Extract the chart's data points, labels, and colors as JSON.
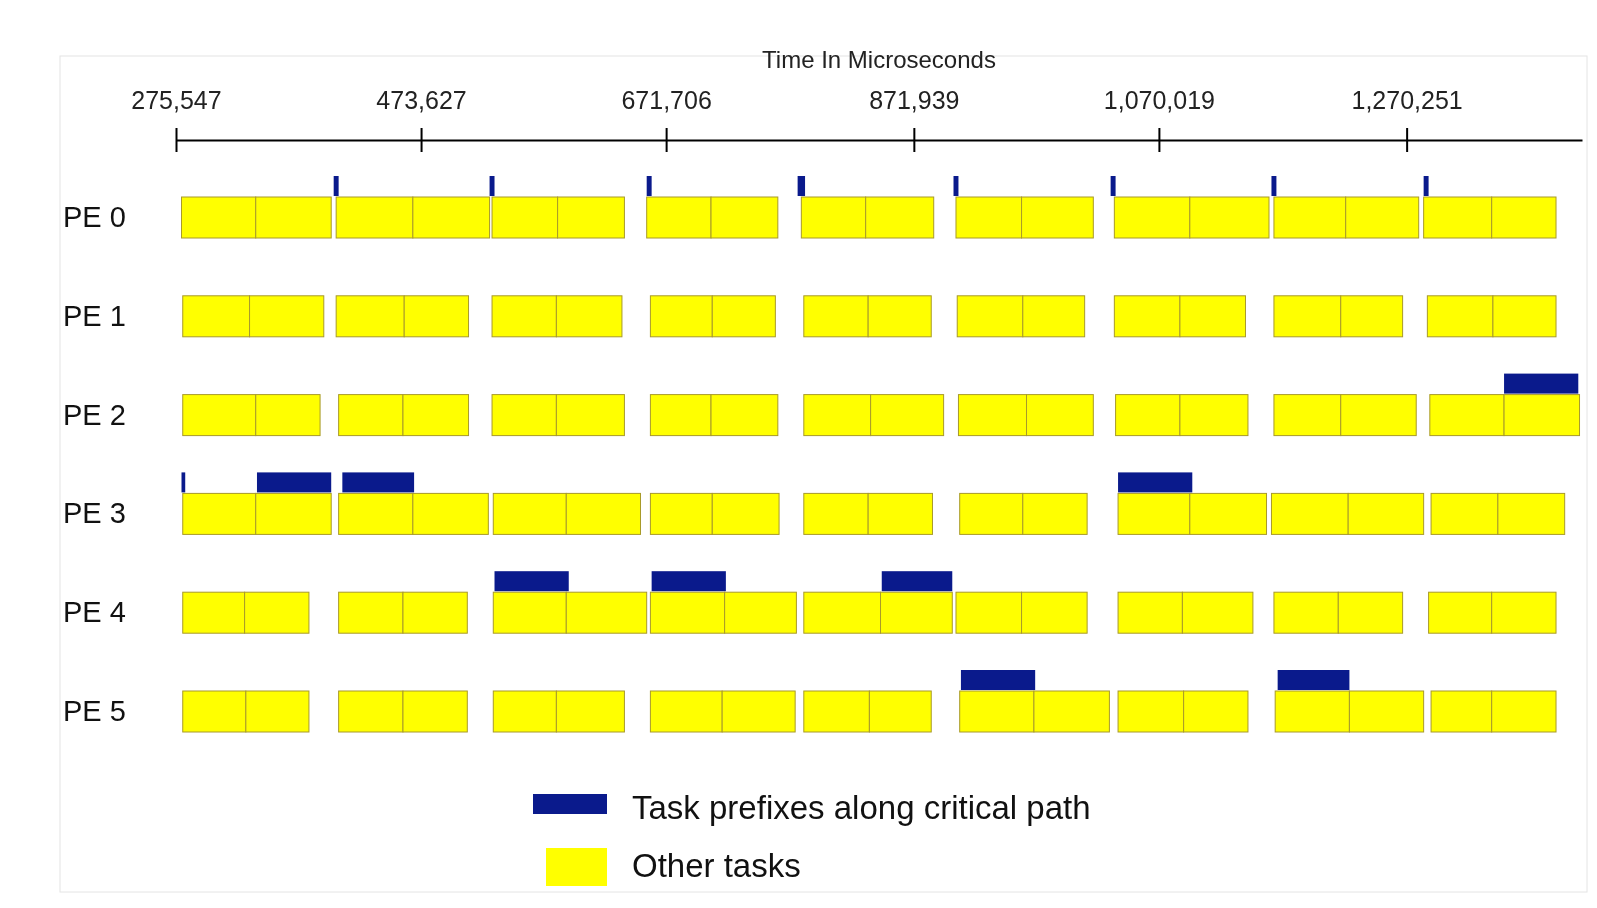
{
  "chart_data": {
    "type": "bar",
    "orientation": "horizontal",
    "xlabel": "Time In Microseconds",
    "categories": [
      "PE 0",
      "PE 1",
      "PE 2",
      "PE 3",
      "PE 4",
      "PE 5"
    ],
    "xlim": [
      275547,
      1412000
    ],
    "xticks": [
      {
        "value": 275547,
        "label": "275,547"
      },
      {
        "value": 473627,
        "label": "473,627"
      },
      {
        "value": 671706,
        "label": "671,706"
      },
      {
        "value": 871939,
        "label": "871,939"
      },
      {
        "value": 1070019,
        "label": "1,070,019"
      },
      {
        "value": 1270251,
        "label": "1,270,251"
      }
    ],
    "legend": "bottom",
    "series": [
      {
        "name": "Other tasks",
        "color": "#ffff00",
        "base": [
          280000,
          281000,
          281000,
          281000,
          281000,
          281000
        ],
        "values": [
          60000,
          54000,
          59000,
          59000,
          50000,
          51000
        ]
      },
      {
        "color": "#ffff00",
        "base": [
          340000,
          335000,
          340000,
          340000,
          331000,
          332000
        ],
        "values": [
          61000,
          60000,
          52000,
          61000,
          52000,
          51000
        ]
      },
      {
        "color": "#ffff00",
        "base": [
          405000,
          405000,
          407000,
          407000,
          407000,
          407000
        ],
        "values": [
          62000,
          55000,
          52000,
          60000,
          52000,
          52000
        ]
      },
      {
        "color": "#ffff00",
        "base": [
          467000,
          460000,
          459000,
          467000,
          459000,
          459000
        ],
        "values": [
          62000,
          52000,
          53000,
          61000,
          52000,
          52000
        ]
      },
      {
        "color": "#ffff00",
        "base": [
          531000,
          531000,
          531000,
          532000,
          532000,
          532000
        ],
        "values": [
          53000,
          52000,
          52000,
          59000,
          59000,
          51000
        ]
      },
      {
        "color": "#ffff00",
        "base": [
          584000,
          583000,
          583000,
          591000,
          591000,
          583000
        ],
        "values": [
          54000,
          53000,
          55000,
          60000,
          65000,
          55000
        ]
      },
      {
        "color": "#ffff00",
        "base": [
          656000,
          659000,
          659000,
          659000,
          659000,
          659000
        ],
        "values": [
          52000,
          50000,
          49000,
          50000,
          60000,
          58000
        ]
      },
      {
        "color": "#ffff00",
        "base": [
          708000,
          709000,
          708000,
          709000,
          719000,
          717000
        ],
        "values": [
          54000,
          51000,
          54000,
          54000,
          58000,
          59000
        ]
      },
      {
        "color": "#ffff00",
        "base": [
          781000,
          783000,
          783000,
          783000,
          783000,
          783000
        ],
        "values": [
          52000,
          52000,
          54000,
          52000,
          62000,
          53000
        ]
      },
      {
        "color": "#ffff00",
        "base": [
          833000,
          835000,
          837000,
          835000,
          845000,
          836000
        ],
        "values": [
          55000,
          51000,
          59000,
          52000,
          58000,
          50000
        ]
      },
      {
        "color": "#ffff00",
        "base": [
          906000,
          907000,
          908000,
          909000,
          906000,
          909000
        ],
        "values": [
          53000,
          53000,
          55000,
          51000,
          53000,
          60000
        ]
      },
      {
        "color": "#ffff00",
        "base": [
          959000,
          960000,
          963000,
          960000,
          959000,
          969000
        ],
        "values": [
          58000,
          50000,
          54000,
          52000,
          53000,
          61000
        ]
      },
      {
        "color": "#ffff00",
        "base": [
          1034000,
          1034000,
          1035000,
          1037000,
          1037000,
          1037000
        ],
        "values": [
          61000,
          53000,
          52000,
          58000,
          52000,
          53000
        ]
      },
      {
        "color": "#ffff00",
        "base": [
          1095000,
          1087000,
          1087000,
          1095000,
          1089000,
          1090000
        ],
        "values": [
          64000,
          53000,
          55000,
          62000,
          57000,
          52000
        ]
      },
      {
        "color": "#ffff00",
        "base": [
          1163000,
          1163000,
          1163000,
          1161000,
          1163000,
          1164000
        ],
        "values": [
          58000,
          54000,
          54000,
          62000,
          52000,
          60000
        ]
      },
      {
        "color": "#ffff00",
        "base": [
          1221000,
          1217000,
          1217000,
          1223000,
          1215000,
          1224000
        ],
        "values": [
          59000,
          50000,
          61000,
          61000,
          52000,
          60000
        ]
      },
      {
        "color": "#ffff00",
        "base": [
          1284000,
          1287000,
          1289000,
          1290000,
          1288000,
          1290000
        ],
        "values": [
          55000,
          53000,
          60000,
          54000,
          51000,
          49000
        ]
      },
      {
        "color": "#ffff00",
        "base": [
          1339000,
          1340000,
          1349000,
          1344000,
          1339000,
          1339000
        ],
        "values": [
          52000,
          51000,
          61000,
          54000,
          52000,
          52000
        ]
      },
      {
        "name": "Task prefixes along critical path",
        "color": "#0a1a8c",
        "base": [
          403000,
          null,
          1349000,
          280000,
          533000,
          910000
        ],
        "values": [
          4000,
          null,
          60000,
          3000,
          60000,
          60000
        ]
      },
      {
        "color": "#0a1a8c",
        "base": [
          529000,
          null,
          null,
          341000,
          660000,
          1166000
        ],
        "values": [
          4000,
          null,
          null,
          60000,
          60000,
          58000
        ]
      },
      {
        "color": "#0a1a8c",
        "base": [
          656000,
          null,
          null,
          410000,
          846000,
          null
        ],
        "values": [
          4000,
          null,
          null,
          58000,
          57000,
          null
        ]
      },
      {
        "color": "#0a1a8c",
        "base": [
          778000,
          null,
          null,
          1037000,
          null,
          null
        ],
        "values": [
          6000,
          null,
          null,
          60000,
          null,
          null
        ]
      },
      {
        "color": "#0a1a8c",
        "base": [
          904000,
          null,
          null,
          null,
          null,
          null
        ],
        "values": [
          4000,
          null,
          null,
          null,
          null,
          null
        ]
      },
      {
        "color": "#0a1a8c",
        "base": [
          1031000,
          null,
          null,
          null,
          null,
          null
        ],
        "values": [
          4000,
          null,
          null,
          null,
          null,
          null
        ]
      },
      {
        "color": "#0a1a8c",
        "base": [
          1161000,
          null,
          null,
          null,
          null,
          null
        ],
        "values": [
          4000,
          null,
          null,
          null,
          null,
          null
        ]
      },
      {
        "color": "#0a1a8c",
        "base": [
          1284000,
          null,
          null,
          null,
          null,
          null
        ],
        "values": [
          4000,
          null,
          null,
          null,
          null,
          null
        ]
      }
    ]
  }
}
